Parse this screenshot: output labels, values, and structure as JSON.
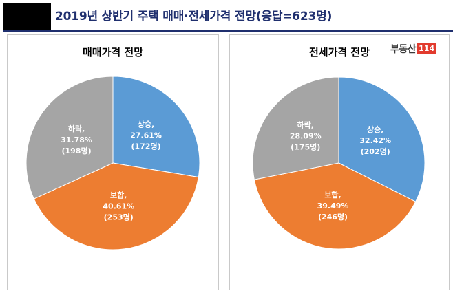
{
  "header": {
    "title": "2019년 상반기 주택 매매·전세가격 전망(응답=623명)"
  },
  "logo": {
    "text": "부동산",
    "number": "114"
  },
  "colors": {
    "rise": "#5b9bd5",
    "steady": "#ed7d31",
    "fall": "#a5a5a5"
  },
  "chart_data": [
    {
      "type": "pie",
      "title": "매매가격 전망",
      "start_angle": 0,
      "slices": [
        {
          "name": "상승",
          "pct": 27.61,
          "count": 172,
          "color": "#5b9bd5",
          "label": [
            "상승,",
            "27.61%",
            "(172명)"
          ]
        },
        {
          "name": "보합",
          "pct": 40.61,
          "count": 253,
          "color": "#ed7d31",
          "label": [
            "보합,",
            "40.61%",
            "(253명)"
          ]
        },
        {
          "name": "하락",
          "pct": 31.78,
          "count": 198,
          "color": "#a5a5a5",
          "label": [
            "하락,",
            "31.78%",
            "(198명)"
          ]
        }
      ]
    },
    {
      "type": "pie",
      "title": "전세가격 전망",
      "start_angle": 0,
      "slices": [
        {
          "name": "상승",
          "pct": 32.42,
          "count": 202,
          "color": "#5b9bd5",
          "label": [
            "상승,",
            "32.42%",
            "(202명)"
          ]
        },
        {
          "name": "보합",
          "pct": 39.49,
          "count": 246,
          "color": "#ed7d31",
          "label": [
            "보합,",
            "39.49%",
            "(246명)"
          ]
        },
        {
          "name": "하락",
          "pct": 28.09,
          "count": 175,
          "color": "#a5a5a5",
          "label": [
            "하락,",
            "28.09%",
            "(175명)"
          ]
        }
      ]
    }
  ]
}
